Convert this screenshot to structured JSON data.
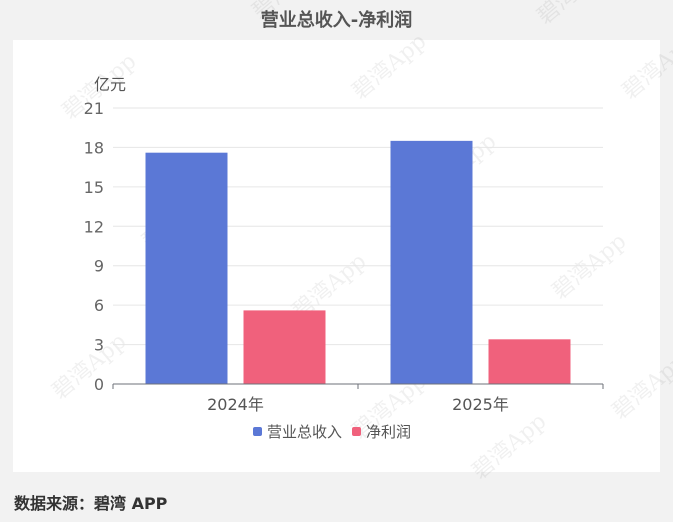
{
  "title": "营业总收入-净利润",
  "source": "数据来源：碧湾 APP",
  "watermark": "碧湾App",
  "chart_data": {
    "type": "bar",
    "title": "营业总收入-净利润",
    "categories": [
      "2024年",
      "2025年"
    ],
    "series": [
      {
        "name": "营业总收入",
        "values": [
          17.6,
          18.5
        ],
        "color": "#5b78d6"
      },
      {
        "name": "净利润",
        "values": [
          5.6,
          3.4
        ],
        "color": "#f0617c"
      }
    ],
    "ylabel": "亿元",
    "ylim": [
      0,
      21
    ],
    "yticks": [
      0,
      3,
      6,
      9,
      12,
      15,
      18,
      21
    ],
    "grid": true,
    "legend": "bottom"
  }
}
